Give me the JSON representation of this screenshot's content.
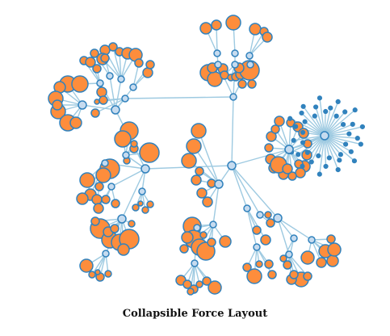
{
  "caption": "Collapsible Force Layout",
  "colors": {
    "background": "#ffffff",
    "link": "#9ecae1",
    "leaf_fill": "#fd8d3c",
    "internal_fill": "#c6dbef",
    "collapsed_fill": "#3182bd",
    "node_stroke": "#3182bd"
  }
}
